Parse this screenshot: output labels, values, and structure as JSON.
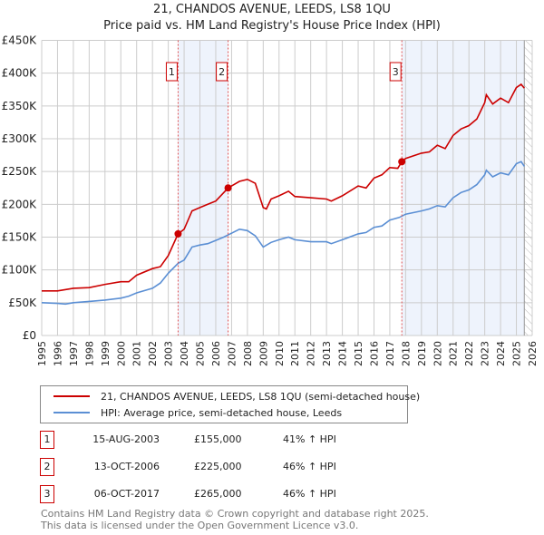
{
  "title": "21, CHANDOS AVENUE, LEEDS, LS8 1QU",
  "subtitle": "Price paid vs. HM Land Registry's House Price Index (HPI)",
  "chart_data": {
    "type": "line",
    "title": "21, CHANDOS AVENUE, LEEDS, LS8 1QU",
    "subtitle": "Price paid vs. HM Land Registry's House Price Index (HPI)",
    "xlim": [
      1995,
      2026
    ],
    "ylim": [
      0,
      450000
    ],
    "x_ticks": [
      "1995",
      "1996",
      "1997",
      "1998",
      "1999",
      "2000",
      "2001",
      "2002",
      "2003",
      "2004",
      "2005",
      "2006",
      "2007",
      "2008",
      "2009",
      "2010",
      "2011",
      "2012",
      "2013",
      "2014",
      "2015",
      "2016",
      "2017",
      "2018",
      "2019",
      "2020",
      "2021",
      "2022",
      "2023",
      "2024",
      "2025",
      "2026"
    ],
    "y_ticks": [
      {
        "v": 0,
        "l": "£0"
      },
      {
        "v": 50000,
        "l": "£50K"
      },
      {
        "v": 100000,
        "l": "£100K"
      },
      {
        "v": 150000,
        "l": "£150K"
      },
      {
        "v": 200000,
        "l": "£200K"
      },
      {
        "v": 250000,
        "l": "£250K"
      },
      {
        "v": 300000,
        "l": "£300K"
      },
      {
        "v": 350000,
        "l": "£350K"
      },
      {
        "v": 400000,
        "l": "£400K"
      },
      {
        "v": 450000,
        "l": "£450K"
      }
    ],
    "grid": true,
    "shaded_ranges": [
      [
        2003.62,
        2006.78
      ],
      [
        2017.76,
        2025.5
      ]
    ],
    "data_end": 2025.5,
    "series": [
      {
        "name": "21, CHANDOS AVENUE, LEEDS, LS8 1QU (semi-detached house)",
        "color": "#cc0000",
        "x": [
          1995,
          1996,
          1997,
          1998,
          1999,
          2000,
          2000.5,
          2001,
          2002,
          2002.5,
          2003,
          2003.62,
          2004,
          2004.5,
          2005,
          2005.5,
          2006,
          2006.78,
          2007,
          2007.5,
          2008,
          2008.5,
          2009,
          2009.2,
          2009.5,
          2010,
          2010.6,
          2011,
          2012,
          2013,
          2013.3,
          2014,
          2015,
          2015.5,
          2016,
          2016.5,
          2017,
          2017.5,
          2017.76,
          2018,
          2019,
          2019.5,
          2020,
          2020.5,
          2021,
          2021.5,
          2022,
          2022.5,
          2023,
          2023.1,
          2023.5,
          2024,
          2024.5,
          2025,
          2025.3,
          2025.5
        ],
        "y": [
          68000,
          68000,
          72000,
          73000,
          78000,
          82000,
          82000,
          92000,
          102000,
          105000,
          122000,
          155000,
          162000,
          190000,
          195000,
          200000,
          205000,
          225000,
          228000,
          235000,
          238000,
          232000,
          195000,
          193000,
          208000,
          213000,
          220000,
          212000,
          210000,
          208000,
          205000,
          213000,
          228000,
          225000,
          240000,
          245000,
          256000,
          255000,
          265000,
          270000,
          278000,
          280000,
          290000,
          285000,
          305000,
          315000,
          320000,
          330000,
          355000,
          367000,
          353000,
          362000,
          355000,
          378000,
          383000,
          377000
        ]
      },
      {
        "name": "HPI: Average price, semi-detached house, Leeds",
        "color": "#5b8fd4",
        "x": [
          1995,
          1996,
          1996.5,
          1997,
          1998,
          1999,
          2000,
          2000.5,
          2001,
          2002,
          2002.5,
          2003,
          2003.62,
          2004,
          2004.5,
          2005,
          2005.5,
          2006,
          2006.5,
          2007,
          2007.5,
          2008,
          2008.5,
          2009,
          2009.5,
          2010,
          2010.6,
          2011,
          2012,
          2013,
          2013.3,
          2014,
          2015,
          2015.5,
          2016,
          2016.5,
          2017,
          2017.6,
          2018,
          2019,
          2019.5,
          2020,
          2020.5,
          2021,
          2021.5,
          2022,
          2022.5,
          2023,
          2023.1,
          2023.5,
          2024,
          2024.5,
          2025,
          2025.3,
          2025.5
        ],
        "y": [
          50000,
          49000,
          48000,
          50000,
          52000,
          54000,
          57000,
          60000,
          65000,
          72000,
          80000,
          95000,
          110000,
          115000,
          135000,
          138000,
          140000,
          145000,
          150000,
          156000,
          162000,
          160000,
          152000,
          135000,
          142000,
          146000,
          150000,
          146000,
          143000,
          143000,
          140000,
          146000,
          155000,
          157000,
          165000,
          167000,
          176000,
          180000,
          185000,
          190000,
          193000,
          198000,
          196000,
          210000,
          218000,
          222000,
          230000,
          245000,
          252000,
          242000,
          248000,
          245000,
          262000,
          265000,
          258000
        ]
      }
    ],
    "sales": [
      {
        "label": "1",
        "x": 2003.62,
        "y": 155000
      },
      {
        "label": "2",
        "x": 2006.78,
        "y": 225000
      },
      {
        "label": "3",
        "x": 2017.76,
        "y": 265000
      }
    ],
    "legend_position": "below"
  },
  "legend": [
    {
      "label": "21, CHANDOS AVENUE, LEEDS, LS8 1QU (semi-detached house)",
      "color": "#cc0000"
    },
    {
      "label": "HPI: Average price, semi-detached house, Leeds",
      "color": "#5b8fd4"
    }
  ],
  "transactions": [
    {
      "num": "1",
      "date": "15-AUG-2003",
      "price": "£155,000",
      "hpi": "41% ↑ HPI"
    },
    {
      "num": "2",
      "date": "13-OCT-2006",
      "price": "£225,000",
      "hpi": "46% ↑ HPI"
    },
    {
      "num": "3",
      "date": "06-OCT-2017",
      "price": "£265,000",
      "hpi": "46% ↑ HPI"
    }
  ],
  "footer": {
    "line1": "Contains HM Land Registry data © Crown copyright and database right 2025.",
    "line2": "This data is licensed under the Open Government Licence v3.0."
  }
}
